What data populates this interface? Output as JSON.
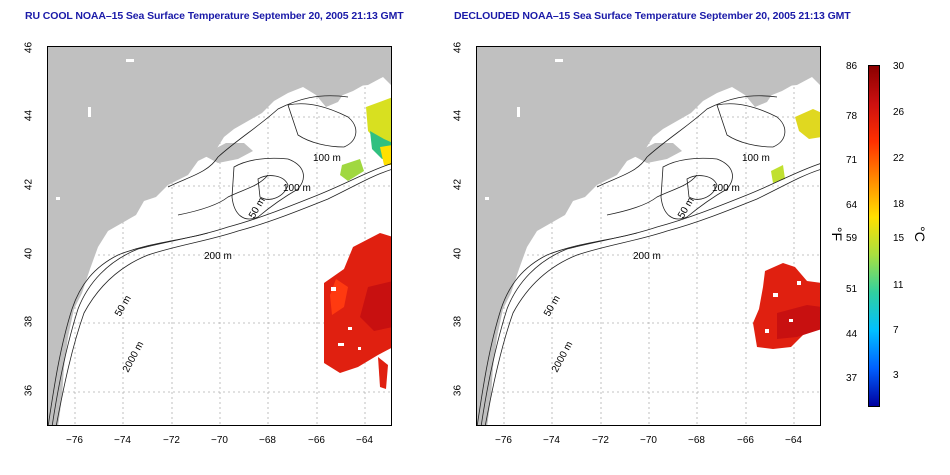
{
  "panels": [
    {
      "id": "left",
      "title": "RU COOL NOAA–15 Sea Surface Temperature September 20, 2005 21:13 GMT"
    },
    {
      "id": "right",
      "title": "DECLOUDED NOAA–15 Sea Surface Temperature September 20, 2005 21:13 GMT"
    }
  ],
  "axes": {
    "x_ticks": [
      "−76",
      "−74",
      "−72",
      "−70",
      "−68",
      "−66",
      "−64"
    ],
    "y_ticks": [
      "46",
      "44",
      "42",
      "40",
      "38",
      "36"
    ]
  },
  "contour_labels": [
    "100 m",
    "100 m",
    "50 m",
    "200 m",
    "50 m",
    "2000 m"
  ],
  "colorbar": {
    "fahrenheit_ticks": [
      "86",
      "78",
      "71",
      "64",
      "59",
      "51",
      "44",
      "37"
    ],
    "celsius_ticks": [
      "30",
      "26",
      "22",
      "18",
      "15",
      "11",
      "7",
      "3"
    ],
    "fahrenheit_unit": "°F",
    "celsius_unit": "°C",
    "colors": [
      "#8b0000",
      "#cc1010",
      "#ff3000",
      "#ff8a00",
      "#ffe000",
      "#a8e040",
      "#30d0a0",
      "#00c0ff",
      "#0060ff",
      "#0000a0"
    ]
  },
  "colors": {
    "land": "#c0c0c0",
    "title": "#1a1aa8",
    "sst_warm": "#e02010"
  }
}
